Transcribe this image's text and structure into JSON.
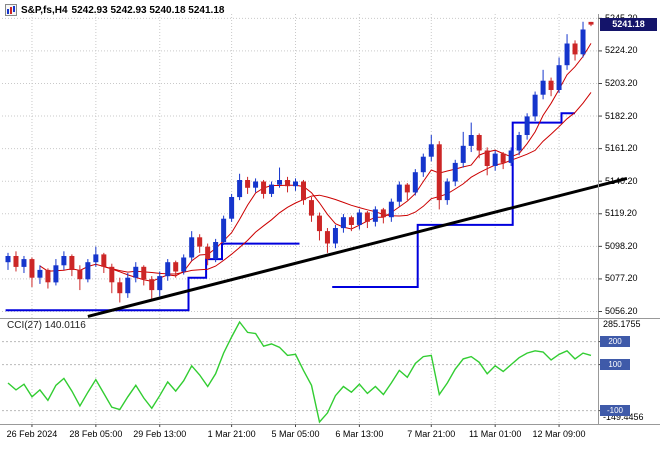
{
  "header": {
    "symbol": "S&P,fs,H4",
    "quote": "5242.93 5242.93 5240.18 5241.18"
  },
  "colors": {
    "bull": "#1535cc",
    "bear": "#cc2626",
    "grid": "#c9c9c9"
  },
  "chart_data": [
    {
      "type": "candlestick",
      "title": "S&P,fs,H4",
      "symbol": "S&P",
      "timeframe": "H4",
      "last_quote": {
        "open": 5242.93,
        "high": 5242.93,
        "low": 5240.18,
        "close": 5241.18
      },
      "current_price": 5241.18,
      "current_price_label": "5241.18",
      "ylim": [
        5052,
        5248
      ],
      "y_tick_labels": [
        "5245.20",
        "5224.20",
        "5203.20",
        "5182.20",
        "5161.20",
        "5140.20",
        "5119.20",
        "5098.20",
        "5077.20",
        "5056.20"
      ],
      "y_tick_values": [
        5245.2,
        5224.2,
        5203.2,
        5182.2,
        5161.2,
        5140.2,
        5119.2,
        5098.2,
        5077.2,
        5056.2
      ],
      "x_labels": [
        "26 Feb 2024",
        "28 Feb 05:00",
        "29 Feb 13:00",
        "1 Mar 21:00",
        "5 Mar 05:00",
        "6 Mar 13:00",
        "7 Mar 21:00",
        "11 Mar 01:00",
        "12 Mar 09:00"
      ],
      "x_label_indices": [
        3,
        11,
        19,
        28,
        36,
        44,
        53,
        61,
        69
      ],
      "candles": [
        [
          5088,
          5094,
          5083,
          5092
        ],
        [
          5092,
          5095,
          5082,
          5085
        ],
        [
          5085,
          5092,
          5081,
          5090
        ],
        [
          5090,
          5091,
          5072,
          5078
        ],
        [
          5078,
          5086,
          5074,
          5083
        ],
        [
          5083,
          5084,
          5071,
          5075
        ],
        [
          5075,
          5090,
          5073,
          5086
        ],
        [
          5086,
          5095,
          5083,
          5092
        ],
        [
          5092,
          5093,
          5079,
          5083
        ],
        [
          5083,
          5086,
          5070,
          5077
        ],
        [
          5077,
          5090,
          5075,
          5088
        ],
        [
          5088,
          5098,
          5085,
          5093
        ],
        [
          5093,
          5094,
          5081,
          5085
        ],
        [
          5085,
          5087,
          5068,
          5075
        ],
        [
          5075,
          5078,
          5062,
          5068
        ],
        [
          5068,
          5081,
          5065,
          5078
        ],
        [
          5078,
          5088,
          5075,
          5085
        ],
        [
          5085,
          5086,
          5073,
          5077
        ],
        [
          5077,
          5079,
          5063,
          5070
        ],
        [
          5070,
          5082,
          5066,
          5079
        ],
        [
          5079,
          5090,
          5076,
          5088
        ],
        [
          5088,
          5089,
          5078,
          5082
        ],
        [
          5082,
          5093,
          5080,
          5091
        ],
        [
          5091,
          5108,
          5089,
          5104
        ],
        [
          5104,
          5106,
          5094,
          5098
        ],
        [
          5098,
          5100,
          5086,
          5090
        ],
        [
          5090,
          5103,
          5088,
          5101
        ],
        [
          5101,
          5118,
          5099,
          5116
        ],
        [
          5116,
          5132,
          5114,
          5130
        ],
        [
          5130,
          5145,
          5128,
          5141
        ],
        [
          5141,
          5143,
          5132,
          5136
        ],
        [
          5136,
          5142,
          5133,
          5140
        ],
        [
          5140,
          5141,
          5129,
          5132
        ],
        [
          5132,
          5140,
          5130,
          5138
        ],
        [
          5138,
          5149,
          5136,
          5141
        ],
        [
          5141,
          5143,
          5133,
          5137
        ],
        [
          5137,
          5142,
          5134,
          5140
        ],
        [
          5140,
          5141,
          5125,
          5128
        ],
        [
          5128,
          5130,
          5114,
          5118
        ],
        [
          5118,
          5120,
          5102,
          5108
        ],
        [
          5108,
          5110,
          5094,
          5100
        ],
        [
          5100,
          5112,
          5097,
          5110
        ],
        [
          5110,
          5119,
          5107,
          5117
        ],
        [
          5117,
          5118,
          5108,
          5112
        ],
        [
          5112,
          5122,
          5109,
          5120
        ],
        [
          5120,
          5121,
          5110,
          5114
        ],
        [
          5114,
          5124,
          5111,
          5122
        ],
        [
          5122,
          5123,
          5113,
          5117
        ],
        [
          5117,
          5129,
          5114,
          5127
        ],
        [
          5127,
          5140,
          5124,
          5138
        ],
        [
          5138,
          5139,
          5128,
          5133
        ],
        [
          5133,
          5148,
          5131,
          5146
        ],
        [
          5146,
          5158,
          5143,
          5156
        ],
        [
          5156,
          5170,
          5153,
          5164
        ],
        [
          5164,
          5166,
          5122,
          5128
        ],
        [
          5128,
          5142,
          5125,
          5140
        ],
        [
          5140,
          5154,
          5137,
          5152
        ],
        [
          5152,
          5172,
          5149,
          5163
        ],
        [
          5163,
          5178,
          5159,
          5170
        ],
        [
          5170,
          5171,
          5155,
          5160
        ],
        [
          5160,
          5162,
          5144,
          5150
        ],
        [
          5150,
          5160,
          5147,
          5158
        ],
        [
          5158,
          5159,
          5148,
          5152
        ],
        [
          5152,
          5162,
          5150,
          5160
        ],
        [
          5160,
          5172,
          5157,
          5170
        ],
        [
          5170,
          5184,
          5167,
          5182
        ],
        [
          5182,
          5198,
          5179,
          5196
        ],
        [
          5196,
          5212,
          5193,
          5205
        ],
        [
          5205,
          5207,
          5195,
          5199
        ],
        [
          5199,
          5220,
          5197,
          5215
        ],
        [
          5215,
          5235,
          5212,
          5229
        ],
        [
          5229,
          5231,
          5218,
          5222
        ],
        [
          5222,
          5243,
          5220,
          5238
        ],
        [
          5242.93,
          5242.93,
          5240.18,
          5241.18
        ]
      ],
      "overlays": {
        "ma_color": "#cc0000",
        "ma_fast_period": 5,
        "ma_slow_period": 13,
        "stop_line": {
          "color": "#0000dd",
          "polylines": [
            [
              {
                "i": -0.3,
                "level": 5057
              },
              {
                "i": 22.6,
                "level": 5057
              },
              {
                "i": 22.6,
                "level": 5078
              },
              {
                "i": 24.8,
                "level": 5078
              },
              {
                "i": 24.8,
                "level": 5090
              },
              {
                "i": 26.8,
                "level": 5090
              },
              {
                "i": 26.8,
                "level": 5100
              },
              {
                "i": 36.5,
                "level": 5100
              }
            ],
            [
              {
                "i": 40.6,
                "level": 5072
              },
              {
                "i": 51.3,
                "level": 5072
              },
              {
                "i": 51.3,
                "level": 5112
              },
              {
                "i": 63.2,
                "level": 5112
              },
              {
                "i": 63.2,
                "level": 5178
              },
              {
                "i": 69.3,
                "level": 5178
              },
              {
                "i": 69.3,
                "level": 5184
              },
              {
                "i": 71,
                "level": 5184
              }
            ]
          ]
        },
        "trend_line": {
          "color": "#000000",
          "from": {
            "i": 10,
            "price": 5053
          },
          "to": {
            "i": 77.5,
            "price": 5142
          }
        }
      }
    },
    {
      "type": "line",
      "label": "CCI(27) 140.0116",
      "indicator": "CCI",
      "period": 27,
      "current_value": 140.0116,
      "color": "#32cd32",
      "ylim": [
        -149.4456,
        285.1755
      ],
      "axis_max_label": "285.1755",
      "axis_min_label": "-149.4456",
      "levels": [
        200,
        100,
        -100
      ],
      "level_labels": [
        "200",
        "100",
        "-100"
      ],
      "values": [
        20,
        -10,
        15,
        -40,
        -10,
        -55,
        10,
        40,
        -15,
        -80,
        -20,
        35,
        -25,
        -85,
        -95,
        -40,
        10,
        -45,
        -90,
        -35,
        25,
        -15,
        30,
        95,
        55,
        5,
        60,
        150,
        220,
        285.1755,
        240,
        235,
        180,
        190,
        175,
        140,
        145,
        75,
        10,
        -149.4456,
        -110,
        -35,
        5,
        -20,
        15,
        -25,
        5,
        -30,
        20,
        75,
        45,
        105,
        135,
        140,
        -30,
        20,
        80,
        125,
        135,
        110,
        60,
        95,
        70,
        100,
        130,
        150,
        160,
        155,
        120,
        145,
        160,
        125,
        150,
        140.0116
      ]
    }
  ]
}
